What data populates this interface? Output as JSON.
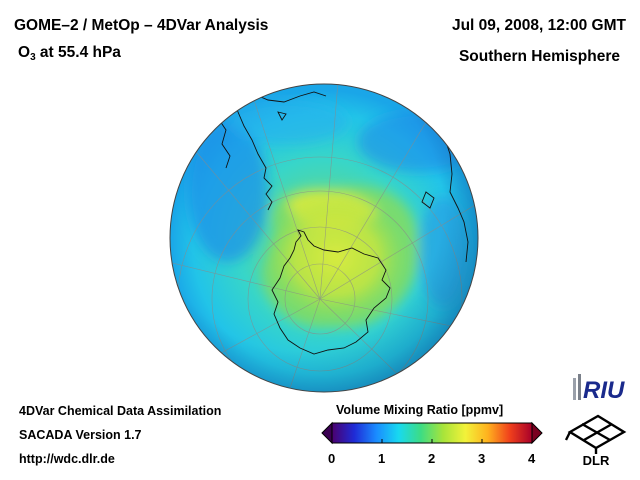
{
  "header": {
    "title_line1": "GOME–2 / MetOp – 4DVar Analysis",
    "title_line2_main": "O",
    "title_line2_sub": "3",
    "title_line2_rest": " at 55.4 hPa",
    "date": "Jul 09, 2008, 12:00 GMT",
    "hemisphere": "Southern Hemisphere"
  },
  "footer": {
    "line1": "4DVar Chemical Data Assimilation",
    "line2": "SACADA Version 1.7",
    "line3": "http://wdc.dlr.de"
  },
  "colorbar": {
    "title": "Volume Mixing Ratio [ppmv]",
    "ticks": [
      "0",
      "1",
      "2",
      "3",
      "4"
    ],
    "min": 0,
    "max": 4,
    "colors": [
      "#4b006e",
      "#1f2bd6",
      "#1a8cff",
      "#18d9f0",
      "#3ddc84",
      "#a8e43a",
      "#f2f23a",
      "#ffb21e",
      "#f0401c",
      "#a8002a"
    ]
  },
  "logos": {
    "riu": "RIU",
    "dlr": "DLR"
  },
  "map": {
    "projection": "orthographic, south pole view",
    "pole_value_ppmv": 2.2,
    "outer_value_ppmv": 1.5
  }
}
